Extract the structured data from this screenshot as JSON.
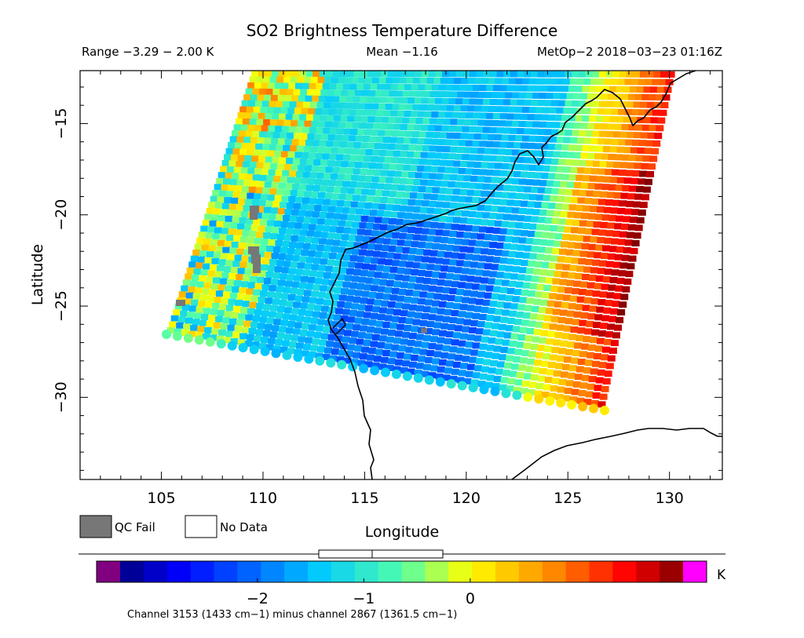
{
  "title": "SO2 Brightness Temperature Difference",
  "range_label": "Range −3.29 − 2.00 K",
  "mean_label": "Mean −1.16",
  "satellite_label": "MetOp−2 2018−03−23 01:16Z",
  "chart_data": {
    "type": "heatmap",
    "xlabel": "Longitude",
    "ylabel": "Latitude",
    "xlim": [
      101,
      132.6
    ],
    "ylim": [
      -34.5,
      -12.1
    ],
    "x_ticks": [
      105,
      110,
      115,
      120,
      125,
      130
    ],
    "x_tick_labels": [
      "105",
      "110",
      "115",
      "120",
      "125",
      "130"
    ],
    "y_ticks": [
      -15,
      -20,
      -25,
      -30
    ],
    "y_tick_labels": [
      "−15",
      "−20",
      "−25",
      "−30"
    ],
    "value_range": [
      -3.29,
      2.0
    ],
    "mean": -1.16,
    "units": "K"
  },
  "legend": {
    "qc_fail": "QC Fail",
    "no_data": "No Data",
    "qc_fail_color": "#777777",
    "no_data_color": "#ffffff"
  },
  "colorbar": {
    "ticks": [
      -2,
      -1,
      0
    ],
    "tick_labels": [
      "−2",
      "−1",
      "0"
    ],
    "unit": "K",
    "under_color": "#800080",
    "over_color": "#ff00ff"
  },
  "footnote": "Channel 3153 (1433 cm−1) minus channel 2867 (1361.5 cm−1)"
}
